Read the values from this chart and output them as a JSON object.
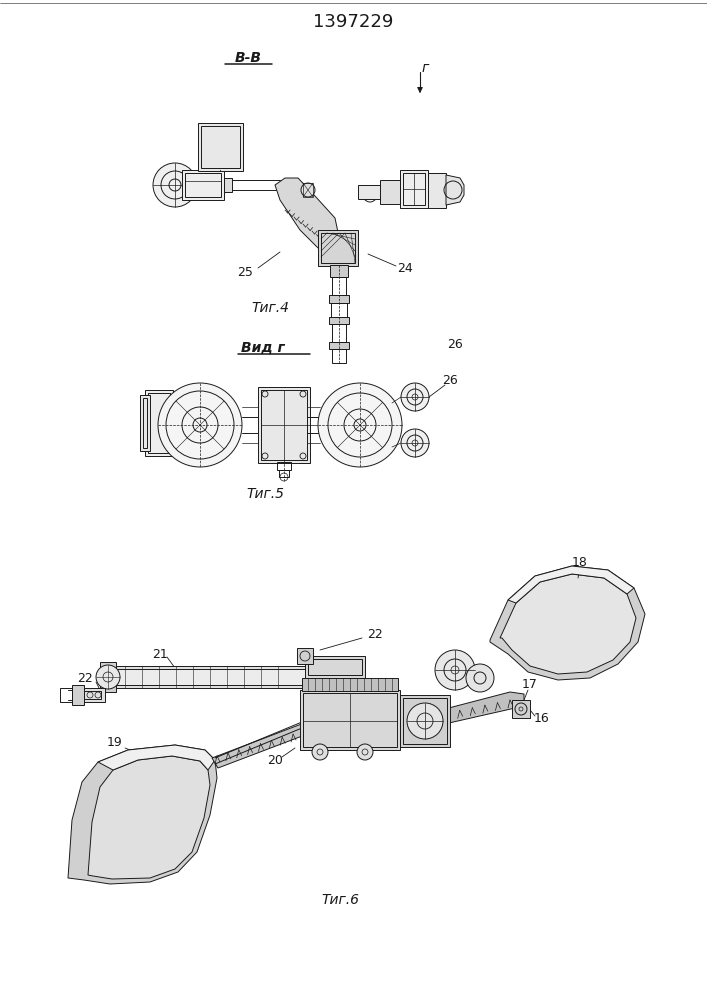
{
  "title": "1397229",
  "background_color": "#ffffff",
  "fig4_label": "Τиг.4",
  "fig5_label": "Τиг.5",
  "fig6_label": "Τиг.6",
  "view_bb": "В-В",
  "view_g": "Вид г",
  "label_25": "25",
  "label_24": "24",
  "label_26a": "26",
  "label_26b": "26",
  "label_g": "г",
  "label_16": "16",
  "label_17": "17",
  "label_18": "18",
  "label_19": "19",
  "label_20": "20",
  "label_21": "21",
  "label_22a": "22",
  "label_22b": "22",
  "line_color": "#1a1a1a",
  "line_width": 0.7
}
